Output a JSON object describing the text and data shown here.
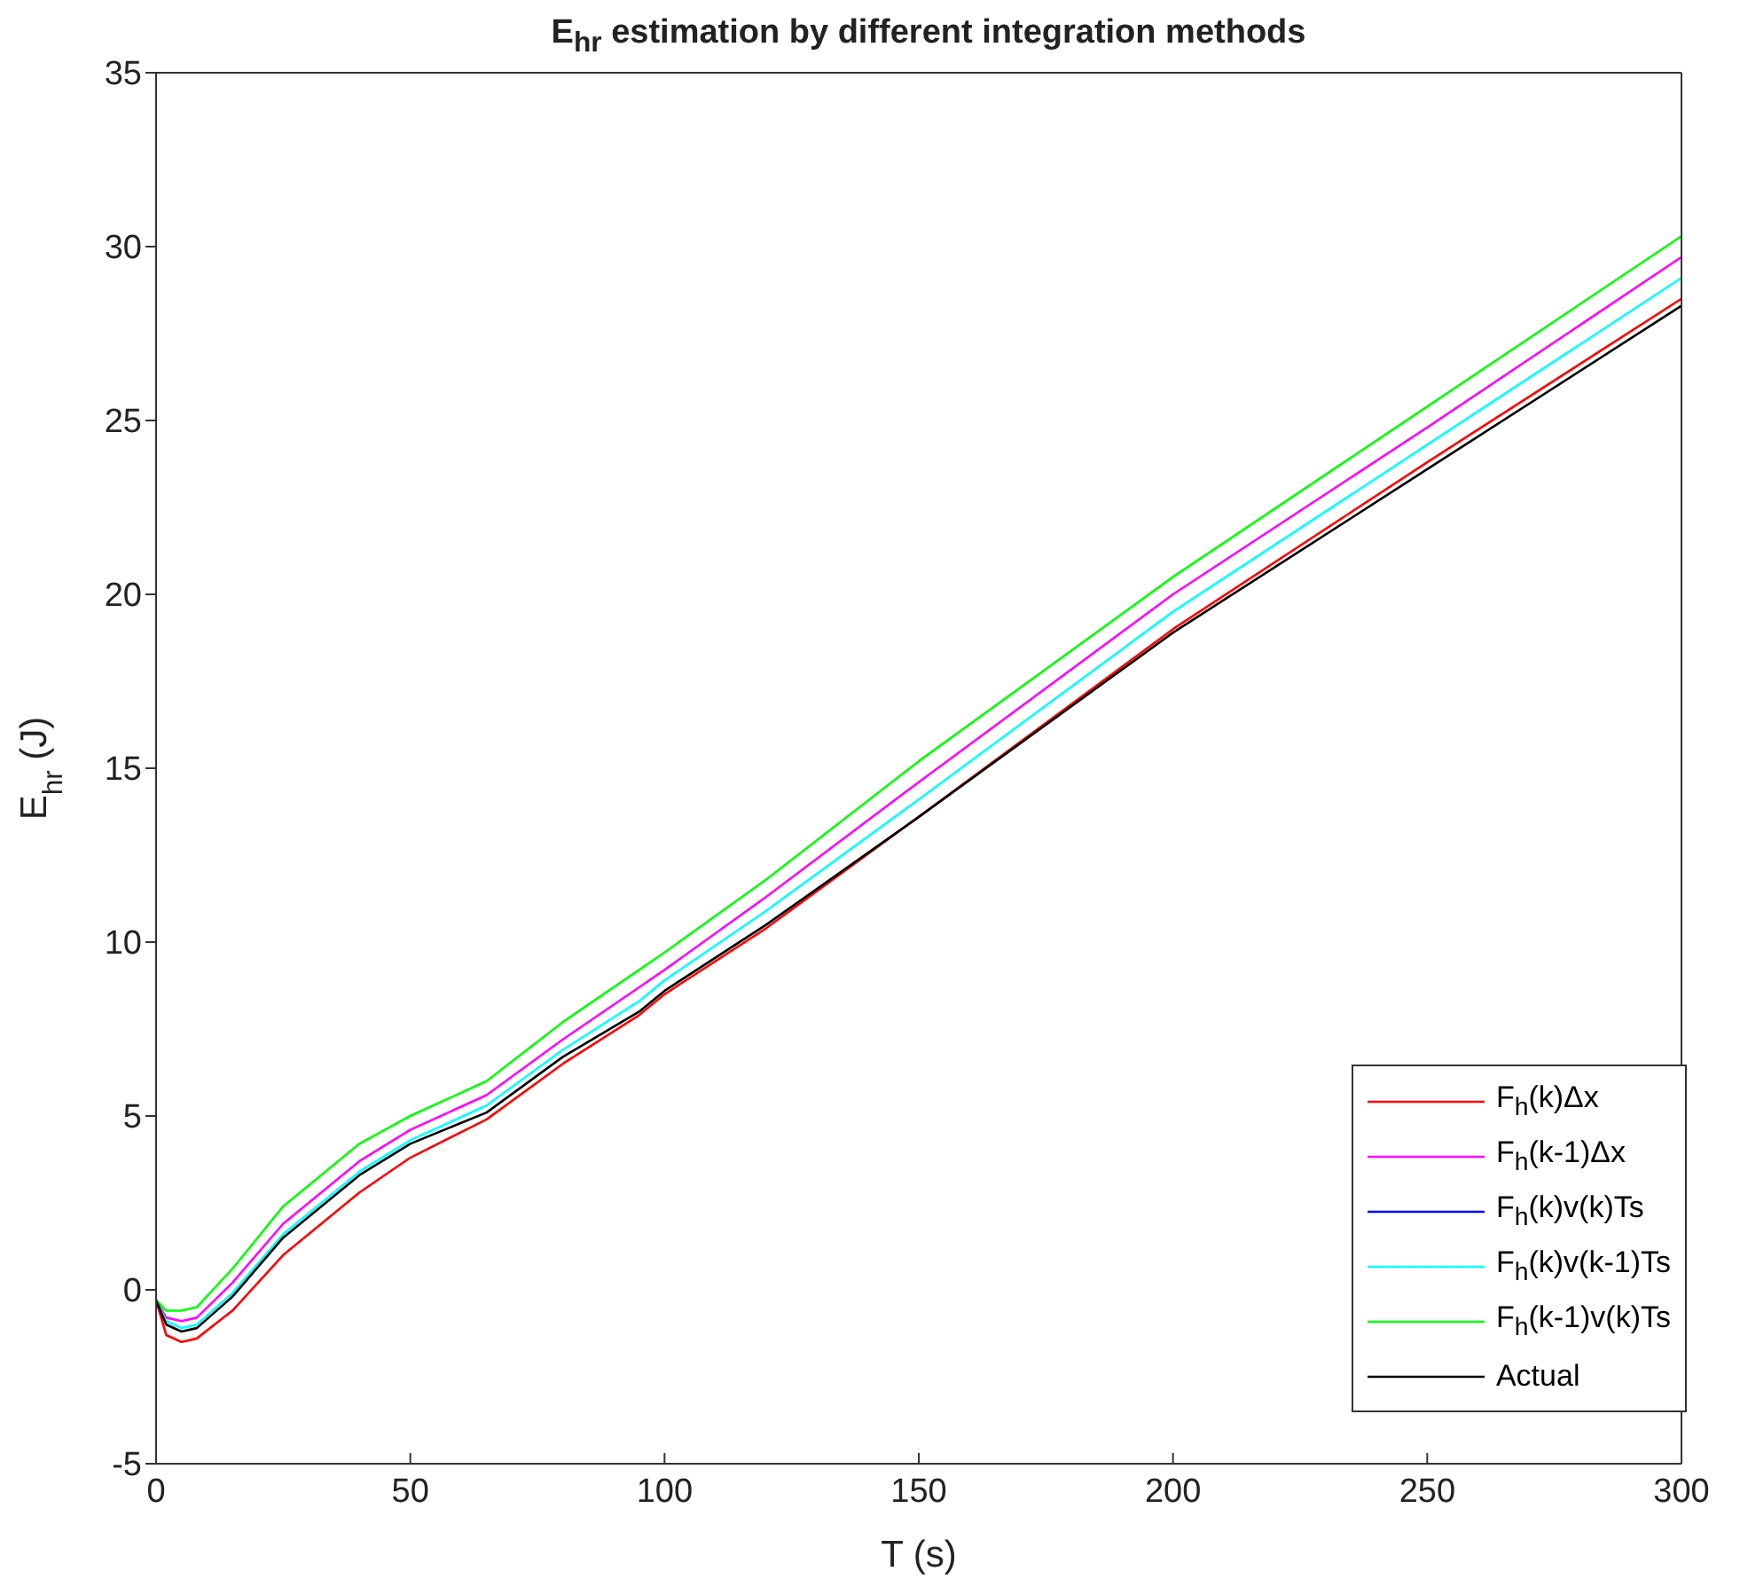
{
  "chart_data": {
    "type": "line",
    "title": "E$_{hr}$ estimation by different integration methods",
    "xlabel": "T (s)",
    "ylabel": "E$_{hr}$ (J)",
    "x": [
      0,
      2,
      5,
      8,
      15,
      25,
      40,
      50,
      65,
      80,
      95,
      100,
      120,
      150,
      200,
      250,
      300
    ],
    "xlim": [
      0,
      300
    ],
    "xticks": [
      0,
      50,
      100,
      150,
      200,
      250,
      300
    ],
    "ylim": [
      -5,
      35
    ],
    "yticks": [
      -5,
      0,
      5,
      10,
      15,
      20,
      25,
      30,
      35
    ],
    "grid": false,
    "legend": "bottom right",
    "marker": "none",
    "line_style": "solid",
    "series": [
      {
        "name": "F$_{h}$(k)Δx",
        "color": "#ff0000",
        "values": [
          -0.3,
          -1.3,
          -1.5,
          -1.4,
          -0.6,
          1.0,
          2.8,
          3.8,
          4.9,
          6.5,
          7.9,
          8.5,
          10.4,
          13.6,
          19.0,
          23.8,
          28.5
        ]
      },
      {
        "name": "F$_{h}$(k-1)Δx",
        "color": "#ff00ff",
        "values": [
          -0.3,
          -0.8,
          -0.9,
          -0.8,
          0.2,
          1.9,
          3.7,
          4.6,
          5.6,
          7.2,
          8.7,
          9.2,
          11.3,
          14.6,
          20.0,
          24.8,
          29.7
        ]
      },
      {
        "name": "F$_{h}$(k)v(k)Ts",
        "color": "#0000ff",
        "values": [
          null,
          null,
          null,
          null,
          null,
          null,
          null,
          null,
          null,
          null,
          null,
          null,
          null,
          null,
          null,
          null,
          null
        ]
      },
      {
        "name": "F$_{h}$(k)v(k-1)Ts",
        "color": "#00ffff",
        "values": [
          -0.3,
          -0.9,
          -1.1,
          -1.0,
          -0.1,
          1.6,
          3.4,
          4.3,
          5.3,
          6.9,
          8.3,
          8.9,
          10.9,
          14.1,
          19.5,
          24.3,
          29.1
        ]
      },
      {
        "name": "F$_{h}$(k-1)v(k)Ts",
        "color": "#00ff00",
        "values": [
          -0.3,
          -0.6,
          -0.6,
          -0.5,
          0.6,
          2.4,
          4.2,
          5.0,
          6.0,
          7.7,
          9.2,
          9.7,
          11.8,
          15.2,
          20.5,
          25.4,
          30.3
        ]
      },
      {
        "name": "Actual",
        "color": "#000000",
        "values": [
          -0.3,
          -1.0,
          -1.2,
          -1.1,
          -0.2,
          1.5,
          3.3,
          4.2,
          5.1,
          6.7,
          8.0,
          8.6,
          10.5,
          13.6,
          18.9,
          23.6,
          28.3
        ]
      }
    ]
  }
}
